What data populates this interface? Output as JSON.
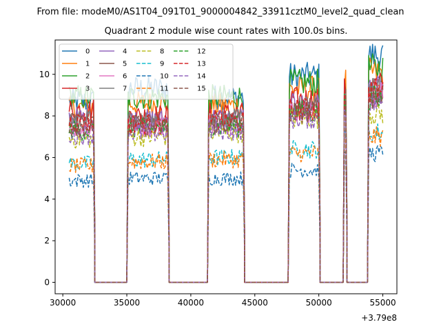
{
  "figure": {
    "suptitle": "From file: modeM0/AS1T04_091T01_9000004842_33911cztM0_level2_quad_clean"
  },
  "chart_data": {
    "type": "line",
    "title": "Quadrant 2 module wise count rates with 100.0s bins.",
    "xlabel": "",
    "ylabel": "",
    "x_offset_label": "+3.79e8",
    "xlim": [
      29400,
      56100
    ],
    "ylim": [
      -0.55,
      11.65
    ],
    "x_ticks": [
      30000,
      35000,
      40000,
      45000,
      50000,
      55000
    ],
    "x_tick_labels": [
      "30000",
      "35000",
      "40000",
      "45000",
      "50000",
      "55000"
    ],
    "y_ticks": [
      0,
      2,
      4,
      6,
      8,
      10
    ],
    "y_tick_labels": [
      "0",
      "2",
      "4",
      "6",
      "8",
      "10"
    ],
    "legend_position": "upper-left",
    "legend_columns": 4,
    "segments": [
      {
        "on": [
          30500,
          32400
        ],
        "zero": [
          32500,
          35000
        ],
        "fall": 32500,
        "rise": 35000
      },
      {
        "on": [
          35100,
          38200
        ],
        "zero": [
          38300,
          41300
        ],
        "fall": 38300,
        "rise": 41300
      },
      {
        "on": [
          41400,
          44100
        ],
        "zero": [
          44200,
          47600
        ],
        "fall": 44200,
        "rise": 47600
      },
      {
        "on": [
          47700,
          50000
        ],
        "zero": [
          50100,
          51900
        ],
        "fall": 50100,
        "rise": 51900
      },
      {
        "on": [
          52000,
          52100
        ],
        "zero": [
          52200,
          53800
        ],
        "fall": 52200,
        "rise": 53800
      },
      {
        "on": [
          53900,
          55000
        ],
        "zero": null,
        "fall": null,
        "rise": null
      }
    ],
    "series": [
      {
        "name": "0",
        "color": "#1f77b4",
        "dash": "solid",
        "levels": [
          8.7,
          9.3,
          8.9,
          9.9,
          10.0,
          10.9
        ]
      },
      {
        "name": "1",
        "color": "#ff7f0e",
        "dash": "solid",
        "levels": [
          8.4,
          8.6,
          8.5,
          9.3,
          9.6,
          10.1
        ]
      },
      {
        "name": "2",
        "color": "#2ca02c",
        "dash": "solid",
        "levels": [
          8.9,
          8.9,
          8.9,
          9.6,
          9.8,
          10.3
        ]
      },
      {
        "name": "3",
        "color": "#d62728",
        "dash": "solid",
        "levels": [
          8.3,
          8.0,
          8.1,
          8.8,
          9.2,
          9.5
        ]
      },
      {
        "name": "4",
        "color": "#9467bd",
        "dash": "solid",
        "levels": [
          7.9,
          7.8,
          7.9,
          8.5,
          9.0,
          9.3
        ]
      },
      {
        "name": "5",
        "color": "#8c564b",
        "dash": "solid",
        "levels": [
          7.6,
          7.6,
          7.7,
          8.3,
          8.8,
          9.1
        ]
      },
      {
        "name": "6",
        "color": "#e377c2",
        "dash": "solid",
        "levels": [
          7.4,
          7.5,
          7.6,
          8.2,
          8.7,
          9.0
        ]
      },
      {
        "name": "7",
        "color": "#7f7f7f",
        "dash": "solid",
        "levels": [
          7.8,
          7.7,
          7.8,
          8.4,
          8.9,
          9.2
        ]
      },
      {
        "name": "8",
        "color": "#bcbd22",
        "dash": "dashed",
        "levels": [
          6.9,
          7.0,
          7.2,
          7.9,
          8.2,
          8.1
        ]
      },
      {
        "name": "9",
        "color": "#17becf",
        "dash": "dashed",
        "levels": [
          5.7,
          5.9,
          6.0,
          6.4,
          6.9,
          7.2
        ]
      },
      {
        "name": "10",
        "color": "#1f77b4",
        "dash": "dashed",
        "levels": [
          4.9,
          5.0,
          5.0,
          5.4,
          5.9,
          6.2
        ]
      },
      {
        "name": "11",
        "color": "#ff7f0e",
        "dash": "dashed",
        "levels": [
          5.6,
          5.8,
          5.9,
          6.2,
          6.7,
          7.0
        ]
      },
      {
        "name": "12",
        "color": "#2ca02c",
        "dash": "dashed",
        "levels": [
          7.3,
          7.4,
          7.5,
          8.2,
          8.6,
          8.9
        ]
      },
      {
        "name": "13",
        "color": "#d62728",
        "dash": "dashed",
        "levels": [
          7.7,
          7.6,
          7.7,
          8.3,
          8.9,
          9.2
        ]
      },
      {
        "name": "14",
        "color": "#9467bd",
        "dash": "dashed",
        "levels": [
          7.1,
          7.2,
          7.3,
          7.9,
          8.3,
          8.6
        ]
      },
      {
        "name": "15",
        "color": "#8c564b",
        "dash": "dashed",
        "levels": [
          7.5,
          7.5,
          7.6,
          8.2,
          8.6,
          8.9
        ]
      }
    ]
  }
}
